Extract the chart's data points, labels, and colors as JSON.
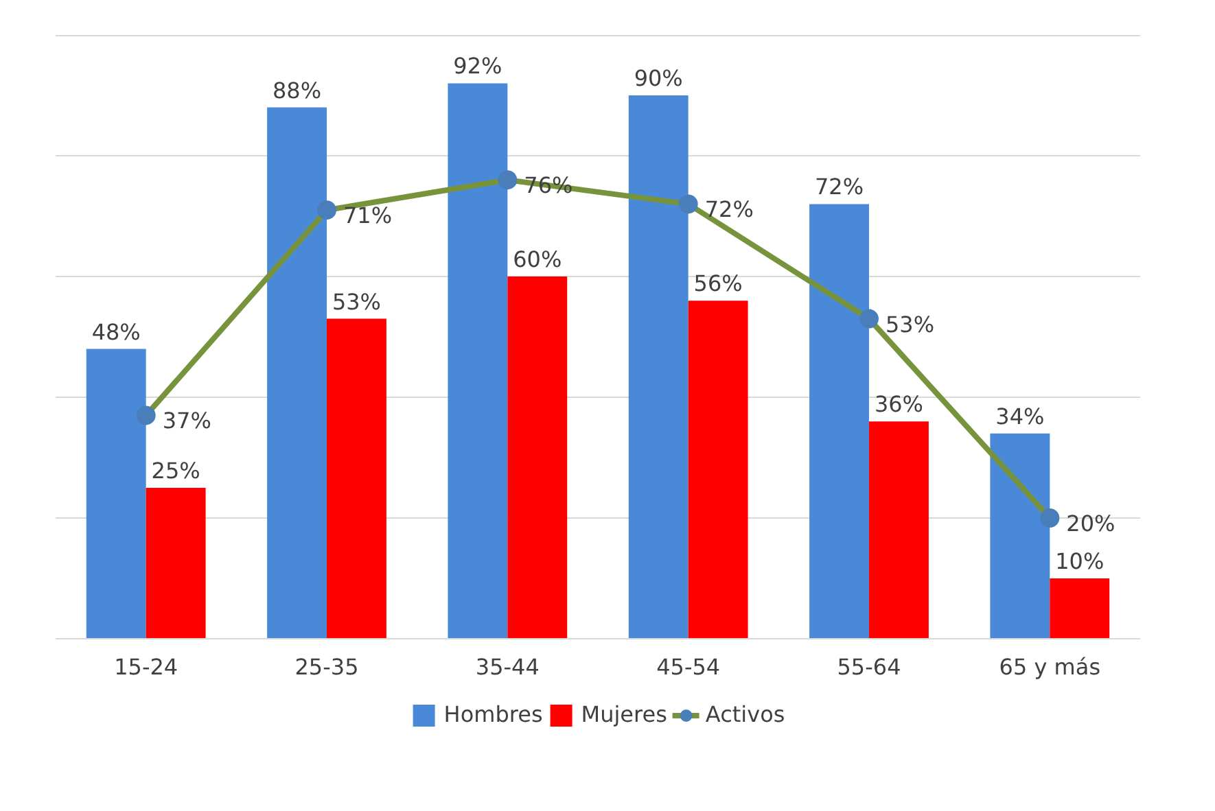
{
  "chart_data": {
    "type": "bar",
    "categories": [
      "15-24",
      "25-35",
      "35-44",
      "45-54",
      "55-64",
      "65 y más"
    ],
    "series": [
      {
        "name": "Hombres",
        "color": "#4a89d8",
        "values": [
          48,
          88,
          92,
          90,
          72,
          34
        ],
        "value_labels": [
          "48%",
          "88%",
          "92%",
          "90%",
          "72%",
          "34%"
        ]
      },
      {
        "name": "Mujeres",
        "color": "#ff0000",
        "values": [
          25,
          53,
          60,
          56,
          36,
          10
        ],
        "value_labels": [
          "25%",
          "53%",
          "60%",
          "56%",
          "36%",
          "10%"
        ]
      },
      {
        "name": "Activos",
        "type": "line",
        "color": "#77933c",
        "values": [
          37,
          71,
          76,
          72,
          53,
          20
        ],
        "value_labels": [
          "37%",
          "71%",
          "76%",
          "72%",
          "53%",
          "20%"
        ]
      }
    ],
    "ylim": [
      0,
      100
    ],
    "yticks": [
      {
        "value": 0,
        "label": null
      },
      {
        "value": 20,
        "label": null
      },
      {
        "value": 40,
        "label": null
      },
      {
        "value": 60,
        "label": null
      },
      {
        "value": 80,
        "label": null
      },
      {
        "value": 100,
        "label": null
      }
    ],
    "tick_labels": "x",
    "grid": "y",
    "legend": "bottom",
    "marker": "circle",
    "line_style": "solid"
  }
}
